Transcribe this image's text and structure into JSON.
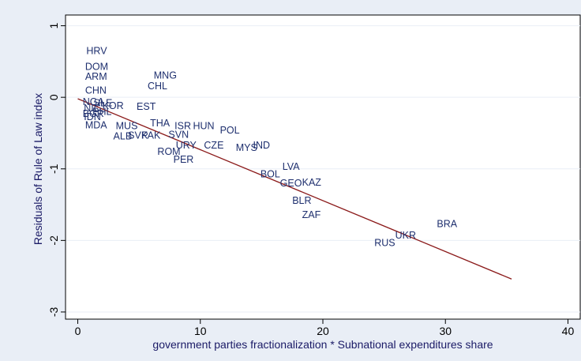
{
  "chart_data": {
    "type": "scatter",
    "title": "",
    "xlabel": "government parties fractionalization * Subnational expenditures share",
    "ylabel": "Residuals of Rule of Law index",
    "xlim": [
      -1,
      41
    ],
    "ylim": [
      -3.1,
      1.15
    ],
    "xticks": [
      0,
      10,
      20,
      30,
      40
    ],
    "yticks": [
      1,
      0,
      -1,
      -2,
      -3
    ],
    "grid": true,
    "legend": "none",
    "colors": {
      "labels": "#1e2f6e",
      "fit_line": "#8b1a1a",
      "background": "#e9eef6",
      "plot": "#ffffff"
    },
    "points": [
      {
        "label": "HRV",
        "x": 0.7,
        "y": 0.64
      },
      {
        "label": "DOM",
        "x": 0.6,
        "y": 0.42
      },
      {
        "label": "ARM",
        "x": 0.6,
        "y": 0.28
      },
      {
        "label": "MNG",
        "x": 6.2,
        "y": 0.3
      },
      {
        "label": "CHL",
        "x": 5.7,
        "y": 0.15
      },
      {
        "label": "CHN",
        "x": 0.6,
        "y": 0.09
      },
      {
        "label": "NGA",
        "x": 0.4,
        "y": -0.07
      },
      {
        "label": "SLE",
        "x": 1.3,
        "y": -0.09
      },
      {
        "label": "KOR",
        "x": 2.0,
        "y": -0.13
      },
      {
        "label": "EST",
        "x": 4.8,
        "y": -0.14
      },
      {
        "label": "NIC",
        "x": 0.5,
        "y": -0.16
      },
      {
        "label": "PHL",
        "x": 1.2,
        "y": -0.21
      },
      {
        "label": "BGR",
        "x": 0.4,
        "y": -0.24
      },
      {
        "label": "IDN",
        "x": 0.5,
        "y": -0.28
      },
      {
        "label": "MDA",
        "x": 0.6,
        "y": -0.4
      },
      {
        "label": "THA",
        "x": 5.9,
        "y": -0.37
      },
      {
        "label": "MUS",
        "x": 3.1,
        "y": -0.41
      },
      {
        "label": "ISR",
        "x": 7.9,
        "y": -0.41
      },
      {
        "label": "HUN",
        "x": 9.4,
        "y": -0.41
      },
      {
        "label": "POL",
        "x": 11.6,
        "y": -0.47
      },
      {
        "label": "SVN",
        "x": 7.4,
        "y": -0.53
      },
      {
        "label": "ALB",
        "x": 2.9,
        "y": -0.55
      },
      {
        "label": "SVK",
        "x": 4.1,
        "y": -0.54
      },
      {
        "label": "PAK",
        "x": 5.2,
        "y": -0.54
      },
      {
        "label": "URY",
        "x": 8.0,
        "y": -0.68
      },
      {
        "label": "CZE",
        "x": 10.3,
        "y": -0.68
      },
      {
        "label": "MYS",
        "x": 12.9,
        "y": -0.71
      },
      {
        "label": "IND",
        "x": 14.3,
        "y": -0.68
      },
      {
        "label": "ROM",
        "x": 6.5,
        "y": -0.77
      },
      {
        "label": "PER",
        "x": 7.8,
        "y": -0.88
      },
      {
        "label": "LVA",
        "x": 16.7,
        "y": -0.98
      },
      {
        "label": "BOL",
        "x": 14.9,
        "y": -1.08
      },
      {
        "label": "GEO",
        "x": 16.5,
        "y": -1.21
      },
      {
        "label": "KAZ",
        "x": 18.3,
        "y": -1.2
      },
      {
        "label": "BLR",
        "x": 17.5,
        "y": -1.45
      },
      {
        "label": "ZAF",
        "x": 18.3,
        "y": -1.65
      },
      {
        "label": "BRA",
        "x": 29.3,
        "y": -1.78
      },
      {
        "label": "UKR",
        "x": 25.9,
        "y": -1.94
      },
      {
        "label": "RUS",
        "x": 24.2,
        "y": -2.04
      }
    ],
    "fit_line": {
      "x": [
        0,
        35.4
      ],
      "y": [
        -0.02,
        -2.54
      ]
    }
  }
}
